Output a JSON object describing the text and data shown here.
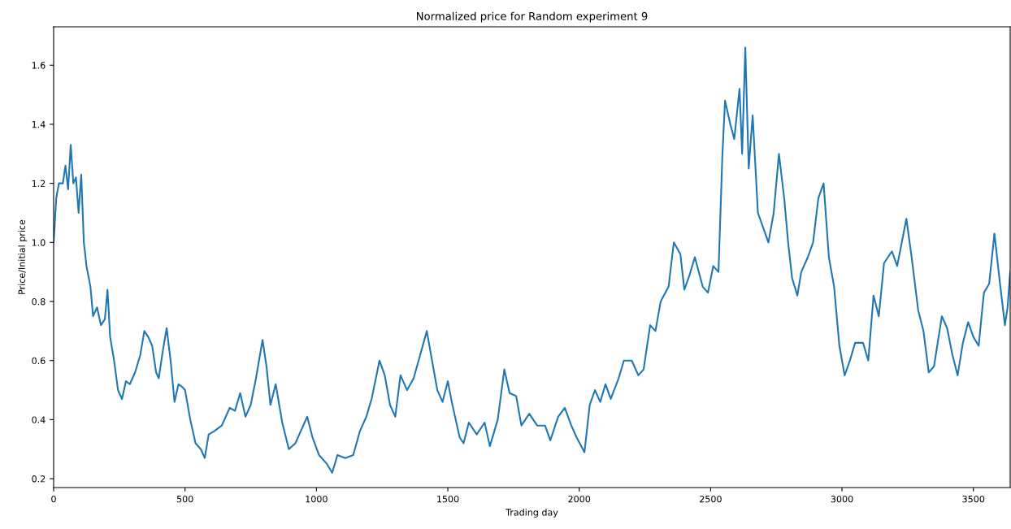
{
  "chart_data": {
    "type": "line",
    "title": "Normalized price for Random experiment 9",
    "xlabel": "Trading day",
    "ylabel": "Price/Initial price",
    "xlim": [
      0,
      3640
    ],
    "ylim": [
      0.17,
      1.73
    ],
    "xticks": [
      0,
      500,
      1000,
      1500,
      2000,
      2500,
      3000,
      3500
    ],
    "yticks": [
      0.2,
      0.4,
      0.6,
      0.8,
      {
        "value": 1.0,
        "label": "1.0"
      },
      1.2,
      1.4,
      1.6
    ],
    "grid": false,
    "marker": "none",
    "line_style": "solid",
    "series": [
      {
        "color": "#1f77b4",
        "x": [
          0,
          10,
          20,
          35,
          45,
          55,
          65,
          75,
          85,
          95,
          105,
          115,
          125,
          140,
          150,
          165,
          180,
          195,
          205,
          215,
          230,
          245,
          260,
          275,
          290,
          310,
          330,
          345,
          360,
          375,
          390,
          400,
          415,
          430,
          445,
          460,
          475,
          490,
          500,
          520,
          540,
          560,
          575,
          590,
          610,
          640,
          670,
          690,
          710,
          730,
          750,
          770,
          795,
          810,
          825,
          845,
          870,
          895,
          920,
          940,
          965,
          985,
          1010,
          1040,
          1060,
          1080,
          1110,
          1140,
          1165,
          1190,
          1210,
          1240,
          1260,
          1280,
          1300,
          1320,
          1345,
          1370,
          1395,
          1420,
          1440,
          1460,
          1480,
          1500,
          1515,
          1545,
          1560,
          1580,
          1610,
          1640,
          1660,
          1690,
          1715,
          1735,
          1760,
          1780,
          1810,
          1840,
          1870,
          1890,
          1920,
          1945,
          1970,
          1990,
          2020,
          2040,
          2060,
          2080,
          2100,
          2120,
          2150,
          2170,
          2200,
          2225,
          2245,
          2270,
          2290,
          2310,
          2340,
          2360,
          2385,
          2400,
          2420,
          2440,
          2470,
          2490,
          2510,
          2530,
          2545,
          2555,
          2575,
          2590,
          2610,
          2620,
          2632,
          2645,
          2660,
          2680,
          2700,
          2720,
          2740,
          2760,
          2780,
          2795,
          2810,
          2830,
          2845,
          2870,
          2890,
          2910,
          2930,
          2950,
          2970,
          2990,
          3010,
          3030,
          3050,
          3080,
          3100,
          3120,
          3140,
          3160,
          3190,
          3210,
          3245,
          3265,
          3290,
          3310,
          3330,
          3350,
          3380,
          3400,
          3420,
          3440,
          3460,
          3480,
          3500,
          3520,
          3540,
          3560,
          3580,
          3600,
          3620,
          3630,
          3640
        ],
        "values": [
          1.0,
          1.15,
          1.2,
          1.2,
          1.26,
          1.18,
          1.33,
          1.2,
          1.22,
          1.1,
          1.23,
          1.0,
          0.92,
          0.85,
          0.75,
          0.78,
          0.72,
          0.74,
          0.84,
          0.68,
          0.6,
          0.5,
          0.47,
          0.53,
          0.52,
          0.56,
          0.62,
          0.7,
          0.68,
          0.65,
          0.56,
          0.54,
          0.63,
          0.71,
          0.6,
          0.46,
          0.52,
          0.51,
          0.5,
          0.4,
          0.32,
          0.3,
          0.27,
          0.35,
          0.36,
          0.38,
          0.44,
          0.43,
          0.49,
          0.41,
          0.45,
          0.54,
          0.67,
          0.58,
          0.45,
          0.52,
          0.39,
          0.3,
          0.32,
          0.36,
          0.41,
          0.34,
          0.28,
          0.25,
          0.22,
          0.28,
          0.27,
          0.28,
          0.36,
          0.41,
          0.47,
          0.6,
          0.55,
          0.45,
          0.41,
          0.55,
          0.5,
          0.54,
          0.62,
          0.7,
          0.6,
          0.5,
          0.46,
          0.53,
          0.46,
          0.34,
          0.32,
          0.39,
          0.35,
          0.39,
          0.31,
          0.4,
          0.57,
          0.49,
          0.48,
          0.38,
          0.42,
          0.38,
          0.38,
          0.33,
          0.41,
          0.44,
          0.38,
          0.34,
          0.29,
          0.45,
          0.5,
          0.46,
          0.52,
          0.47,
          0.54,
          0.6,
          0.6,
          0.55,
          0.57,
          0.72,
          0.7,
          0.8,
          0.85,
          1.0,
          0.96,
          0.84,
          0.89,
          0.95,
          0.85,
          0.83,
          0.92,
          0.9,
          1.3,
          1.48,
          1.4,
          1.35,
          1.52,
          1.3,
          1.66,
          1.25,
          1.43,
          1.1,
          1.05,
          1.0,
          1.1,
          1.3,
          1.15,
          1.0,
          0.88,
          0.82,
          0.9,
          0.95,
          1.0,
          1.15,
          1.2,
          0.95,
          0.85,
          0.65,
          0.55,
          0.6,
          0.66,
          0.66,
          0.6,
          0.82,
          0.75,
          0.93,
          0.97,
          0.92,
          1.08,
          0.95,
          0.77,
          0.7,
          0.56,
          0.58,
          0.75,
          0.71,
          0.62,
          0.55,
          0.66,
          0.73,
          0.68,
          0.65,
          0.83,
          0.86,
          1.03,
          0.87,
          0.72,
          0.78,
          0.9
        ]
      }
    ]
  }
}
